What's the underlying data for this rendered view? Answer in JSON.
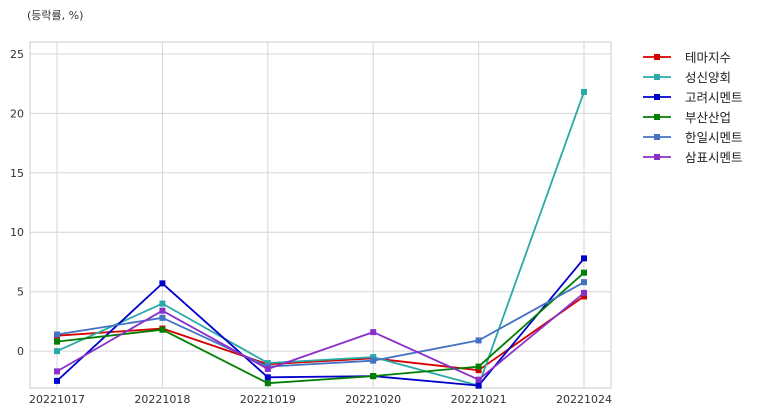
{
  "chart_data": {
    "type": "line",
    "unit_label": "(등락률, %)",
    "x": [
      "20221017",
      "20221018",
      "20221019",
      "20221020",
      "20221021",
      "20221024"
    ],
    "ylim": [
      -3.1,
      26
    ],
    "yticks": [
      0,
      5,
      10,
      15,
      20,
      25
    ],
    "grid": true,
    "legend_position": "outside-top-right",
    "series": [
      {
        "name": "테마지수",
        "color": "#d40000",
        "values": [
          1.3,
          1.9,
          -1.1,
          -0.6,
          -1.6,
          4.6
        ]
      },
      {
        "name": "성신양회",
        "color": "#2aa9a9",
        "values": [
          0.0,
          4.0,
          -1.0,
          -0.5,
          -2.9,
          21.8
        ]
      },
      {
        "name": "고려시멘트",
        "color": "#0000cc",
        "values": [
          -2.5,
          5.7,
          -2.2,
          -2.1,
          -2.9,
          7.8
        ]
      },
      {
        "name": "부산산업",
        "color": "#007f00",
        "values": [
          0.8,
          1.8,
          -2.7,
          -2.1,
          -1.3,
          6.6
        ]
      },
      {
        "name": "한일시멘트",
        "color": "#4472c4",
        "values": [
          1.4,
          2.8,
          -1.3,
          -0.8,
          0.9,
          5.8
        ]
      },
      {
        "name": "삼표시멘트",
        "color": "#8b2fc9",
        "values": [
          -1.7,
          3.4,
          -1.5,
          1.6,
          -2.4,
          4.9
        ]
      }
    ]
  }
}
